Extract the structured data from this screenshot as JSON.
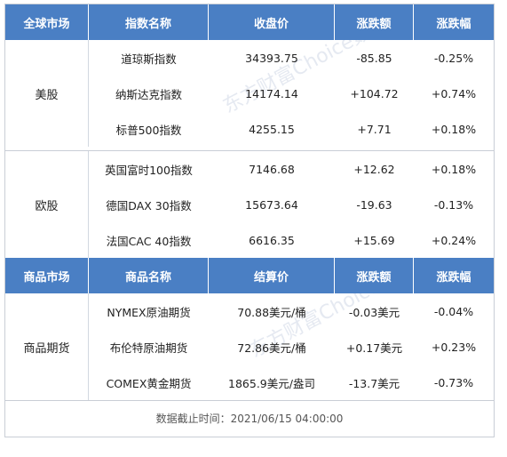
{
  "index_header": [
    "全球市场",
    "指数名称",
    "收盘价",
    "涨跌额",
    "涨跌幅"
  ],
  "us": {
    "group": "美股",
    "rows": [
      {
        "name": "道琼斯指数",
        "close": "34393.75",
        "change": "-85.85",
        "pct": "-0.25%"
      },
      {
        "name": "纳斯达克指数",
        "close": "14174.14",
        "change": "+104.72",
        "pct": "+0.74%"
      },
      {
        "name": "标普500指数",
        "close": "4255.15",
        "change": "+7.71",
        "pct": "+0.18%"
      }
    ]
  },
  "eu": {
    "group": "欧股",
    "rows": [
      {
        "name": "英国富时100指数",
        "close": "7146.68",
        "change": "+12.62",
        "pct": "+0.18%"
      },
      {
        "name": "德国DAX 30指数",
        "close": "15673.64",
        "change": "-19.63",
        "pct": "-0.13%"
      },
      {
        "name": "法国CAC 40指数",
        "close": "6616.35",
        "change": "+15.69",
        "pct": "+0.24%"
      }
    ]
  },
  "commodity_header": [
    "商品市场",
    "商品名称",
    "结算价",
    "涨跌额",
    "涨跌幅"
  ],
  "commodity": {
    "group": "商品期货",
    "rows": [
      {
        "name": "NYMEX原油期货",
        "close": "70.88美元/桶",
        "change": "-0.03美元",
        "pct": "-0.04%"
      },
      {
        "name": "布伦特原油期货",
        "close": "72.86美元/桶",
        "change": "+0.17美元",
        "pct": "+0.23%"
      },
      {
        "name": "COMEX黄金期货",
        "close": "1865.9美元/盎司",
        "change": "-13.7美元",
        "pct": "-0.73%"
      }
    ]
  },
  "footer": "数据截止时间：2021/06/15 04:00:00",
  "watermark": "东方财富Choice数据",
  "colors": {
    "header_bg": "#4a7fc4",
    "header_text": "#ffffff"
  }
}
